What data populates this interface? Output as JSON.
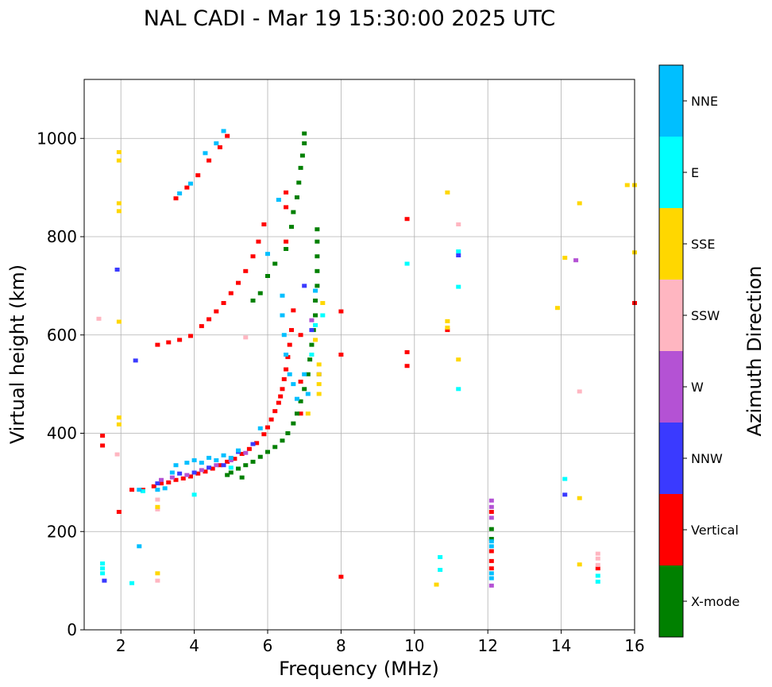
{
  "chart_data": {
    "type": "scatter",
    "title": "NAL CADI - Mar 19 15:30:00 2025 UTC",
    "xlabel": "Frequency (MHz)",
    "ylabel": "Virtual height (km)",
    "xlim": [
      1,
      16
    ],
    "ylim": [
      0,
      1120
    ],
    "xticks": [
      2,
      4,
      6,
      8,
      10,
      12,
      14,
      16
    ],
    "yticks": [
      0,
      200,
      400,
      600,
      800,
      1000
    ],
    "grid": true,
    "colorbar": {
      "label": "Azimuth Direction",
      "categories": [
        {
          "name": "X-mode",
          "color": "#008000"
        },
        {
          "name": "Vertical",
          "color": "#ff0000"
        },
        {
          "name": "NNW",
          "color": "#3a3aff"
        },
        {
          "name": "W",
          "color": "#b452d4"
        },
        {
          "name": "SSW",
          "color": "#ffb6c1"
        },
        {
          "name": "SSE",
          "color": "#ffd700"
        },
        {
          "name": "E",
          "color": "#00ffff"
        },
        {
          "name": "NNE",
          "color": "#00bfff"
        }
      ]
    },
    "series": [
      {
        "name": "Vertical",
        "points": [
          [
            2.3,
            285
          ],
          [
            2.6,
            285
          ],
          [
            2.9,
            292
          ],
          [
            3.1,
            298
          ],
          [
            3.3,
            300
          ],
          [
            3.5,
            305
          ],
          [
            3.7,
            308
          ],
          [
            3.9,
            312
          ],
          [
            4.1,
            318
          ],
          [
            4.3,
            322
          ],
          [
            4.5,
            328
          ],
          [
            4.7,
            335
          ],
          [
            4.9,
            342
          ],
          [
            5.1,
            348
          ],
          [
            5.3,
            358
          ],
          [
            5.5,
            368
          ],
          [
            5.7,
            380
          ],
          [
            5.9,
            398
          ],
          [
            6.0,
            412
          ],
          [
            6.1,
            428
          ],
          [
            6.2,
            445
          ],
          [
            6.3,
            462
          ],
          [
            6.35,
            475
          ],
          [
            6.4,
            490
          ],
          [
            6.45,
            510
          ],
          [
            6.5,
            530
          ],
          [
            6.55,
            555
          ],
          [
            6.6,
            580
          ],
          [
            6.65,
            610
          ],
          [
            6.7,
            650
          ],
          [
            3.0,
            580
          ],
          [
            3.3,
            585
          ],
          [
            3.6,
            590
          ],
          [
            3.9,
            598
          ],
          [
            4.2,
            618
          ],
          [
            4.4,
            632
          ],
          [
            4.6,
            648
          ],
          [
            4.8,
            665
          ],
          [
            5.0,
            685
          ],
          [
            5.2,
            706
          ],
          [
            5.4,
            730
          ],
          [
            5.6,
            760
          ],
          [
            5.75,
            790
          ],
          [
            5.9,
            825
          ],
          [
            3.5,
            878
          ],
          [
            3.8,
            900
          ],
          [
            4.1,
            925
          ],
          [
            4.4,
            955
          ],
          [
            4.7,
            982
          ],
          [
            4.9,
            1005
          ],
          [
            1.5,
            395
          ],
          [
            1.5,
            375
          ],
          [
            1.95,
            240
          ],
          [
            8.0,
            648
          ],
          [
            8.0,
            560
          ],
          [
            8.0,
            108
          ],
          [
            9.8,
            836
          ],
          [
            9.8,
            565
          ],
          [
            9.8,
            537
          ],
          [
            10.9,
            610
          ],
          [
            12.1,
            240
          ],
          [
            12.1,
            160
          ],
          [
            12.1,
            140
          ],
          [
            12.1,
            125
          ],
          [
            15.0,
            125
          ],
          [
            16.0,
            665
          ],
          [
            6.5,
            790
          ],
          [
            6.5,
            860
          ],
          [
            6.5,
            890
          ],
          [
            6.9,
            600
          ],
          [
            6.9,
            505
          ],
          [
            6.9,
            440
          ]
        ]
      },
      {
        "name": "X-mode",
        "points": [
          [
            5.0,
            320
          ],
          [
            5.2,
            328
          ],
          [
            5.4,
            335
          ],
          [
            5.6,
            342
          ],
          [
            5.8,
            352
          ],
          [
            6.0,
            362
          ],
          [
            6.2,
            372
          ],
          [
            6.4,
            385
          ],
          [
            6.55,
            400
          ],
          [
            6.7,
            420
          ],
          [
            6.8,
            440
          ],
          [
            6.9,
            465
          ],
          [
            7.0,
            490
          ],
          [
            7.1,
            520
          ],
          [
            7.15,
            550
          ],
          [
            7.2,
            580
          ],
          [
            7.25,
            610
          ],
          [
            7.3,
            640
          ],
          [
            7.3,
            670
          ],
          [
            7.35,
            700
          ],
          [
            7.35,
            730
          ],
          [
            7.35,
            760
          ],
          [
            7.35,
            790
          ],
          [
            7.35,
            815
          ],
          [
            6.0,
            720
          ],
          [
            6.2,
            745
          ],
          [
            6.5,
            775
          ],
          [
            6.65,
            820
          ],
          [
            6.7,
            850
          ],
          [
            6.8,
            880
          ],
          [
            6.85,
            910
          ],
          [
            6.9,
            940
          ],
          [
            6.95,
            965
          ],
          [
            7.0,
            990
          ],
          [
            7.0,
            1010
          ],
          [
            5.6,
            670
          ],
          [
            5.8,
            685
          ],
          [
            12.1,
            205
          ],
          [
            12.1,
            185
          ],
          [
            4.9,
            315
          ],
          [
            5.3,
            310
          ]
        ]
      },
      {
        "name": "NNW",
        "points": [
          [
            1.9,
            733
          ],
          [
            2.4,
            548
          ],
          [
            3.0,
            298
          ],
          [
            3.6,
            318
          ],
          [
            4.0,
            320
          ],
          [
            4.4,
            330
          ],
          [
            4.8,
            335
          ],
          [
            5.2,
            362
          ],
          [
            5.6,
            378
          ],
          [
            7.0,
            700
          ],
          [
            7.2,
            610
          ],
          [
            11.2,
            762
          ],
          [
            14.1,
            275
          ],
          [
            1.55,
            100
          ],
          [
            7.4,
            520
          ]
        ]
      },
      {
        "name": "W",
        "points": [
          [
            3.1,
            305
          ],
          [
            3.4,
            310
          ],
          [
            3.8,
            315
          ],
          [
            4.2,
            325
          ],
          [
            4.6,
            335
          ],
          [
            5.0,
            345
          ],
          [
            5.4,
            360
          ],
          [
            7.2,
            630
          ],
          [
            12.1,
            263
          ],
          [
            12.1,
            250
          ],
          [
            12.1,
            228
          ],
          [
            14.4,
            752
          ],
          [
            12.1,
            90
          ]
        ]
      },
      {
        "name": "SSW",
        "points": [
          [
            1.4,
            633
          ],
          [
            1.9,
            357
          ],
          [
            3.0,
            245
          ],
          [
            3.0,
            265
          ],
          [
            3.0,
            100
          ],
          [
            11.2,
            825
          ],
          [
            14.5,
            485
          ],
          [
            15.0,
            155
          ],
          [
            15.0,
            145
          ],
          [
            15.0,
            132
          ],
          [
            5.4,
            595
          ]
        ]
      },
      {
        "name": "SSE",
        "points": [
          [
            1.95,
            972
          ],
          [
            1.95,
            955
          ],
          [
            1.95,
            868
          ],
          [
            1.95,
            852
          ],
          [
            1.95,
            627
          ],
          [
            1.95,
            432
          ],
          [
            1.95,
            418
          ],
          [
            3.0,
            250
          ],
          [
            3.0,
            115
          ],
          [
            7.4,
            480
          ],
          [
            7.4,
            500
          ],
          [
            7.4,
            520
          ],
          [
            7.4,
            540
          ],
          [
            7.5,
            665
          ],
          [
            10.6,
            92
          ],
          [
            10.9,
            890
          ],
          [
            10.9,
            628
          ],
          [
            10.9,
            615
          ],
          [
            11.2,
            550
          ],
          [
            13.9,
            655
          ],
          [
            14.1,
            757
          ],
          [
            14.5,
            868
          ],
          [
            14.5,
            268
          ],
          [
            14.5,
            133
          ],
          [
            15.8,
            905
          ],
          [
            16.0,
            905
          ],
          [
            16.0,
            768
          ],
          [
            7.3,
            590
          ],
          [
            7.1,
            440
          ]
        ]
      },
      {
        "name": "E",
        "points": [
          [
            1.5,
            135
          ],
          [
            1.5,
            115
          ],
          [
            2.3,
            95
          ],
          [
            2.6,
            282
          ],
          [
            4.0,
            275
          ],
          [
            5.0,
            330
          ],
          [
            7.2,
            560
          ],
          [
            7.3,
            620
          ],
          [
            7.5,
            640
          ],
          [
            9.8,
            745
          ],
          [
            10.7,
            148
          ],
          [
            10.7,
            122
          ],
          [
            11.2,
            770
          ],
          [
            11.2,
            698
          ],
          [
            11.2,
            490
          ],
          [
            14.1,
            307
          ],
          [
            15.0,
            110
          ],
          [
            15.0,
            98
          ],
          [
            1.5,
            125
          ]
        ]
      },
      {
        "name": "NNE",
        "points": [
          [
            2.5,
            170
          ],
          [
            3.0,
            285
          ],
          [
            3.4,
            320
          ],
          [
            3.5,
            335
          ],
          [
            3.8,
            340
          ],
          [
            4.0,
            345
          ],
          [
            4.2,
            340
          ],
          [
            4.4,
            350
          ],
          [
            4.6,
            345
          ],
          [
            4.8,
            355
          ],
          [
            5.0,
            350
          ],
          [
            5.2,
            365
          ],
          [
            6.4,
            680
          ],
          [
            6.4,
            640
          ],
          [
            6.45,
            600
          ],
          [
            6.5,
            560
          ],
          [
            6.6,
            520
          ],
          [
            6.7,
            500
          ],
          [
            6.8,
            470
          ],
          [
            7.0,
            520
          ],
          [
            7.1,
            480
          ],
          [
            7.3,
            690
          ],
          [
            12.1,
            180
          ],
          [
            12.1,
            170
          ],
          [
            12.1,
            115
          ],
          [
            12.1,
            105
          ],
          [
            3.6,
            888
          ],
          [
            3.9,
            908
          ],
          [
            4.3,
            970
          ],
          [
            4.6,
            990
          ],
          [
            4.8,
            1015
          ],
          [
            6.0,
            765
          ],
          [
            6.3,
            875
          ],
          [
            2.5,
            285
          ],
          [
            3.2,
            288
          ],
          [
            5.8,
            410
          ]
        ]
      }
    ]
  }
}
